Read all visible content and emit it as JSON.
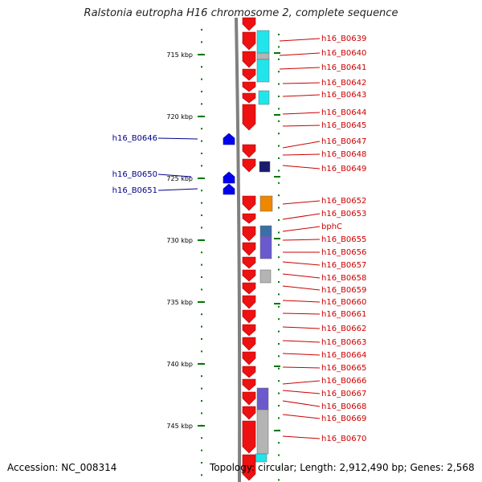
{
  "title": "Ralstonia eutropha H16 chromosome 2, complete sequence",
  "footer": {
    "accession": "Accession: NC_008314",
    "topology": "Topology: circular; Length: 2,912,490 bp; Genes: 2,568"
  },
  "colors": {
    "forward_gene": "#ee1111",
    "reverse_gene": "#0000ee",
    "right_label": "#cc0000",
    "left_label": "#00008b",
    "dot_track": "#007700",
    "axis": "#808080",
    "cog_cyan": "#22e5ec",
    "cog_grey": "#b4b4b4",
    "cog_navy": "#1a1a6e",
    "cog_orange": "#ee8800",
    "cog_steelblue": "#3b6fa8",
    "cog_purple": "#6a5acd"
  },
  "scale": {
    "unit": "kbp",
    "ticks": [
      "715 kbp",
      "720 kbp",
      "725 kbp",
      "730 kbp",
      "735 kbp",
      "740 kbp",
      "745 kbp"
    ]
  },
  "genes_right": [
    "h16_B0639",
    "h16_B0640",
    "h16_B0641",
    "h16_B0642",
    "h16_B0643",
    "h16_B0644",
    "h16_B0645",
    "h16_B0647",
    "h16_B0648",
    "h16_B0649",
    "h16_B0652",
    "h16_B0653",
    "bphC",
    "h16_B0655",
    "h16_B0656",
    "h16_B0657",
    "h16_B0658",
    "h16_B0659",
    "h16_B0660",
    "h16_B0661",
    "h16_B0662",
    "h16_B0663",
    "h16_B0664",
    "h16_B0665",
    "h16_B0666",
    "h16_B0667",
    "h16_B0668",
    "h16_B0669",
    "h16_B0670"
  ],
  "genes_left": [
    "h16_B0646",
    "h16_B0650",
    "h16_B0651"
  ]
}
